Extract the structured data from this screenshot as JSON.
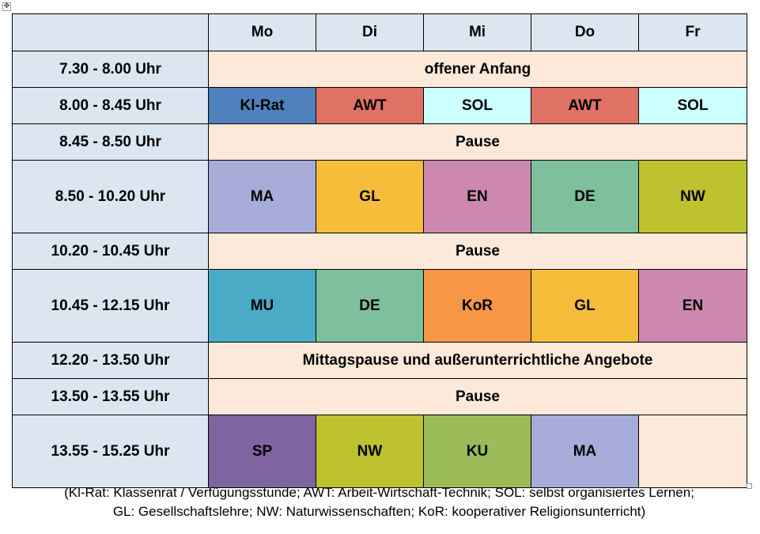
{
  "days": [
    "Mo",
    "Di",
    "Mi",
    "Do",
    "Fr"
  ],
  "colors": {
    "Kl-Rat": "#4f81bd",
    "AWT": "#e07265",
    "SOL": "#ccffff",
    "MA": "#a8acd8",
    "GL": "#f5bd3a",
    "EN": "#cc88ae",
    "DE": "#7ebf9c",
    "NW": "#bdc22e",
    "MU": "#4aabc7",
    "KoR": "#f79745",
    "SP": "#8064a2",
    "KU": "#9bbb59",
    "empty": "#fde9d9"
  },
  "rows": [
    {
      "time": "7.30 - 8.00 Uhr",
      "span_text": "offener Anfang",
      "tall": false
    },
    {
      "time": "8.00 - 8.45 Uhr",
      "cells": [
        "Kl-Rat",
        "AWT",
        "SOL",
        "AWT",
        "SOL"
      ],
      "tall": false
    },
    {
      "time": "8.45 - 8.50 Uhr",
      "span_text": "Pause",
      "tall": false
    },
    {
      "time": "8.50 - 10.20 Uhr",
      "cells": [
        "MA",
        "GL",
        "EN",
        "DE",
        "NW"
      ],
      "tall": true
    },
    {
      "time": "10.20 - 10.45 Uhr",
      "span_text": "Pause",
      "tall": false
    },
    {
      "time": "10.45 - 12.15 Uhr",
      "cells": [
        "MU",
        "DE",
        "KoR",
        "GL",
        "EN"
      ],
      "tall": true
    },
    {
      "time": "12.20 - 13.50 Uhr",
      "span_text": "Mittagspause und außerunterrichtliche Angebote",
      "tall": false
    },
    {
      "time": "13.50 - 13.55 Uhr",
      "span_text": "Pause",
      "tall": false
    },
    {
      "time": "13.55 - 15.25 Uhr",
      "cells": [
        "SP",
        "NW",
        "KU",
        "MA",
        ""
      ],
      "tall": true
    }
  ],
  "footnote": {
    "line1": "(Kl-Rat: Klassenrat / Verfügungsstunde; AWT: Arbeit-Wirtschaft-Technik; SOL: selbst organisiertes Lernen;",
    "line2": "GL: Gesellschaftslehre; NW: Naturwissenschaften; KoR: kooperativer Religionsunterricht)"
  }
}
